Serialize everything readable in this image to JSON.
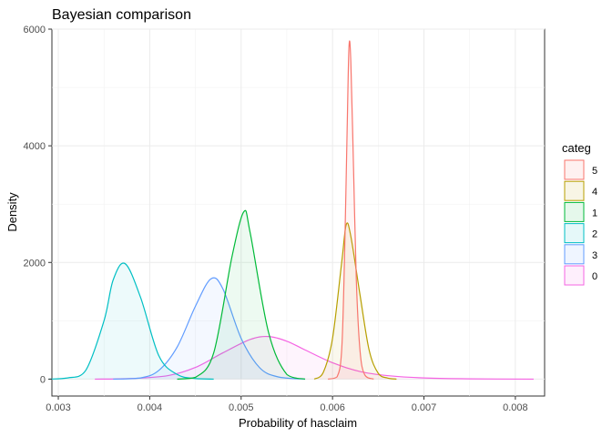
{
  "chart_data": {
    "type": "area",
    "title": "Bayesian comparison",
    "xlabel": "Probability of hasclaim",
    "ylabel": "Density",
    "xlim": [
      0.00293,
      0.00832
    ],
    "ylim": [
      -290,
      6000
    ],
    "x_ticks": [
      "0.003",
      "0.004",
      "0.005",
      "0.006",
      "0.007",
      "0.008"
    ],
    "x_tick_values": [
      0.003,
      0.004,
      0.005,
      0.006,
      0.007,
      0.008
    ],
    "y_ticks": [
      "0",
      "2000",
      "4000",
      "6000"
    ],
    "y_tick_values": [
      0,
      2000,
      4000,
      6000
    ],
    "grid": true,
    "legend": {
      "title": "categ",
      "placement": "right"
    },
    "series": [
      {
        "name": "5",
        "color": "#F8766D",
        "x": [
          0.00595,
          0.00605,
          0.0061,
          0.00613,
          0.00616,
          0.00618,
          0.0062,
          0.00623,
          0.00626,
          0.0063,
          0.00635,
          0.00645
        ],
        "y": [
          0,
          40,
          500,
          2000,
          4300,
          5700,
          5450,
          3600,
          1700,
          500,
          80,
          0
        ]
      },
      {
        "name": "4",
        "color": "#B79F00",
        "x": [
          0.0058,
          0.0059,
          0.006,
          0.0061,
          0.00615,
          0.0062,
          0.0063,
          0.0064,
          0.0065,
          0.0066,
          0.0067
        ],
        "y": [
          0,
          120,
          700,
          2000,
          2650,
          2450,
          1450,
          500,
          100,
          20,
          0
        ]
      },
      {
        "name": "1",
        "color": "#00BA38",
        "x": [
          0.0043,
          0.0045,
          0.0047,
          0.0049,
          0.00503,
          0.0051,
          0.0053,
          0.0055,
          0.0057
        ],
        "y": [
          0,
          30,
          450,
          2100,
          2870,
          2500,
          800,
          80,
          0
        ]
      },
      {
        "name": "2",
        "color": "#00BFC4",
        "x": [
          0.0029,
          0.0031,
          0.0033,
          0.0035,
          0.0036,
          0.00373,
          0.0039,
          0.0041,
          0.0043,
          0.0045,
          0.0047
        ],
        "y": [
          0,
          20,
          150,
          1000,
          1700,
          1980,
          1400,
          400,
          80,
          10,
          0
        ]
      },
      {
        "name": "3",
        "color": "#619CFF",
        "x": [
          0.0036,
          0.0039,
          0.0041,
          0.0043,
          0.0045,
          0.00467,
          0.0048,
          0.005,
          0.0052,
          0.0054,
          0.0057
        ],
        "y": [
          0,
          20,
          150,
          550,
          1250,
          1720,
          1550,
          700,
          200,
          40,
          0
        ]
      },
      {
        "name": "0",
        "color": "#F564E3",
        "x": [
          0.0034,
          0.0038,
          0.0042,
          0.0045,
          0.0048,
          0.0051,
          0.0053,
          0.0055,
          0.0057,
          0.006,
          0.0063,
          0.0066,
          0.007,
          0.0075,
          0.0082
        ],
        "y": [
          0,
          10,
          60,
          200,
          450,
          680,
          730,
          650,
          500,
          280,
          130,
          60,
          20,
          5,
          0
        ]
      }
    ]
  }
}
